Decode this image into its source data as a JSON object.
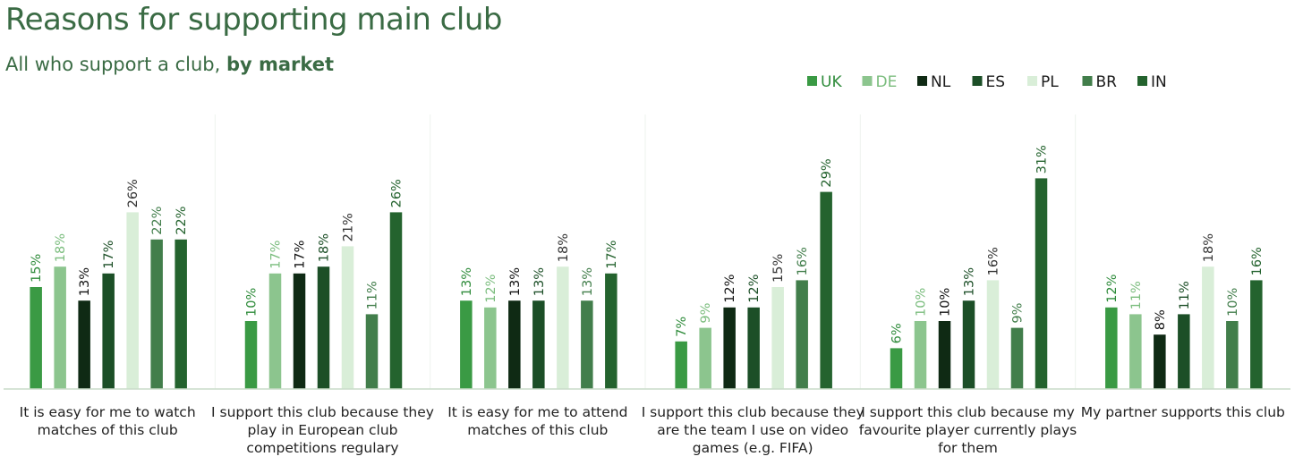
{
  "title": "Reasons for supporting main club",
  "subtitle": {
    "prefix": "All who support a club, ",
    "emphasis": "by market"
  },
  "chart_data": {
    "type": "bar",
    "title": "Reasons for supporting main club",
    "subtitle": "All who support a club, by market",
    "xlabel": "",
    "ylabel": "",
    "ylim": [
      0,
      35
    ],
    "grid": false,
    "legend_position": "top-right",
    "value_format": "percent",
    "categories": [
      [
        "It is easy for me to watch",
        "matches of this club"
      ],
      [
        "I support this club because they",
        "play in European club",
        "competitions regulary"
      ],
      [
        "It is easy for me to attend",
        "matches of this club"
      ],
      [
        "I support this club because they",
        "are the team I use on video",
        "games (e.g. FIFA)"
      ],
      [
        "I support this club because my",
        "favourite player currently plays",
        "for them"
      ],
      [
        "My partner supports this club"
      ]
    ],
    "series": [
      {
        "name": "UK",
        "color": "#3a9a44",
        "label_color": "#2e8b3a",
        "values": [
          15,
          10,
          13,
          7,
          6,
          12
        ]
      },
      {
        "name": "DE",
        "color": "#8cc58e",
        "label_color": "#7bbd7e",
        "values": [
          18,
          17,
          12,
          9,
          10,
          11
        ]
      },
      {
        "name": "NL",
        "color": "#0f2a14",
        "label_color": "#111111",
        "values": [
          13,
          17,
          13,
          12,
          10,
          8
        ]
      },
      {
        "name": "ES",
        "color": "#1c4f27",
        "label_color": "#1c4f27",
        "values": [
          17,
          18,
          13,
          12,
          13,
          11
        ]
      },
      {
        "name": "PL",
        "color": "#d9eed8",
        "label_color": "#333333",
        "values": [
          26,
          21,
          18,
          15,
          16,
          18
        ]
      },
      {
        "name": "BR",
        "color": "#427e4b",
        "label_color": "#427e4b",
        "values": [
          22,
          11,
          13,
          16,
          9,
          10
        ]
      },
      {
        "name": "IN",
        "color": "#24632e",
        "label_color": "#24632e",
        "values": [
          22,
          26,
          17,
          29,
          31,
          16
        ]
      }
    ]
  }
}
